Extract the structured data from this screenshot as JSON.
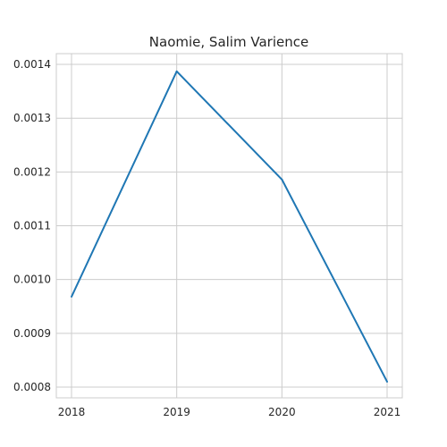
{
  "chart_data": {
    "type": "line",
    "title": "Naomie, Salim Varience",
    "xlabel": "",
    "ylabel": "",
    "categories": [
      "2018",
      "2019",
      "2020",
      "2021"
    ],
    "series": [
      {
        "values": [
          0.000968,
          0.001387,
          0.001186,
          0.00081
        ],
        "color": "#1f77b4"
      }
    ],
    "ylim": [
      0.00078,
      0.00142
    ],
    "yticks": [
      "0.0008",
      "0.0009",
      "0.0010",
      "0.0011",
      "0.0012",
      "0.0013",
      "0.0014"
    ],
    "grid": true
  }
}
